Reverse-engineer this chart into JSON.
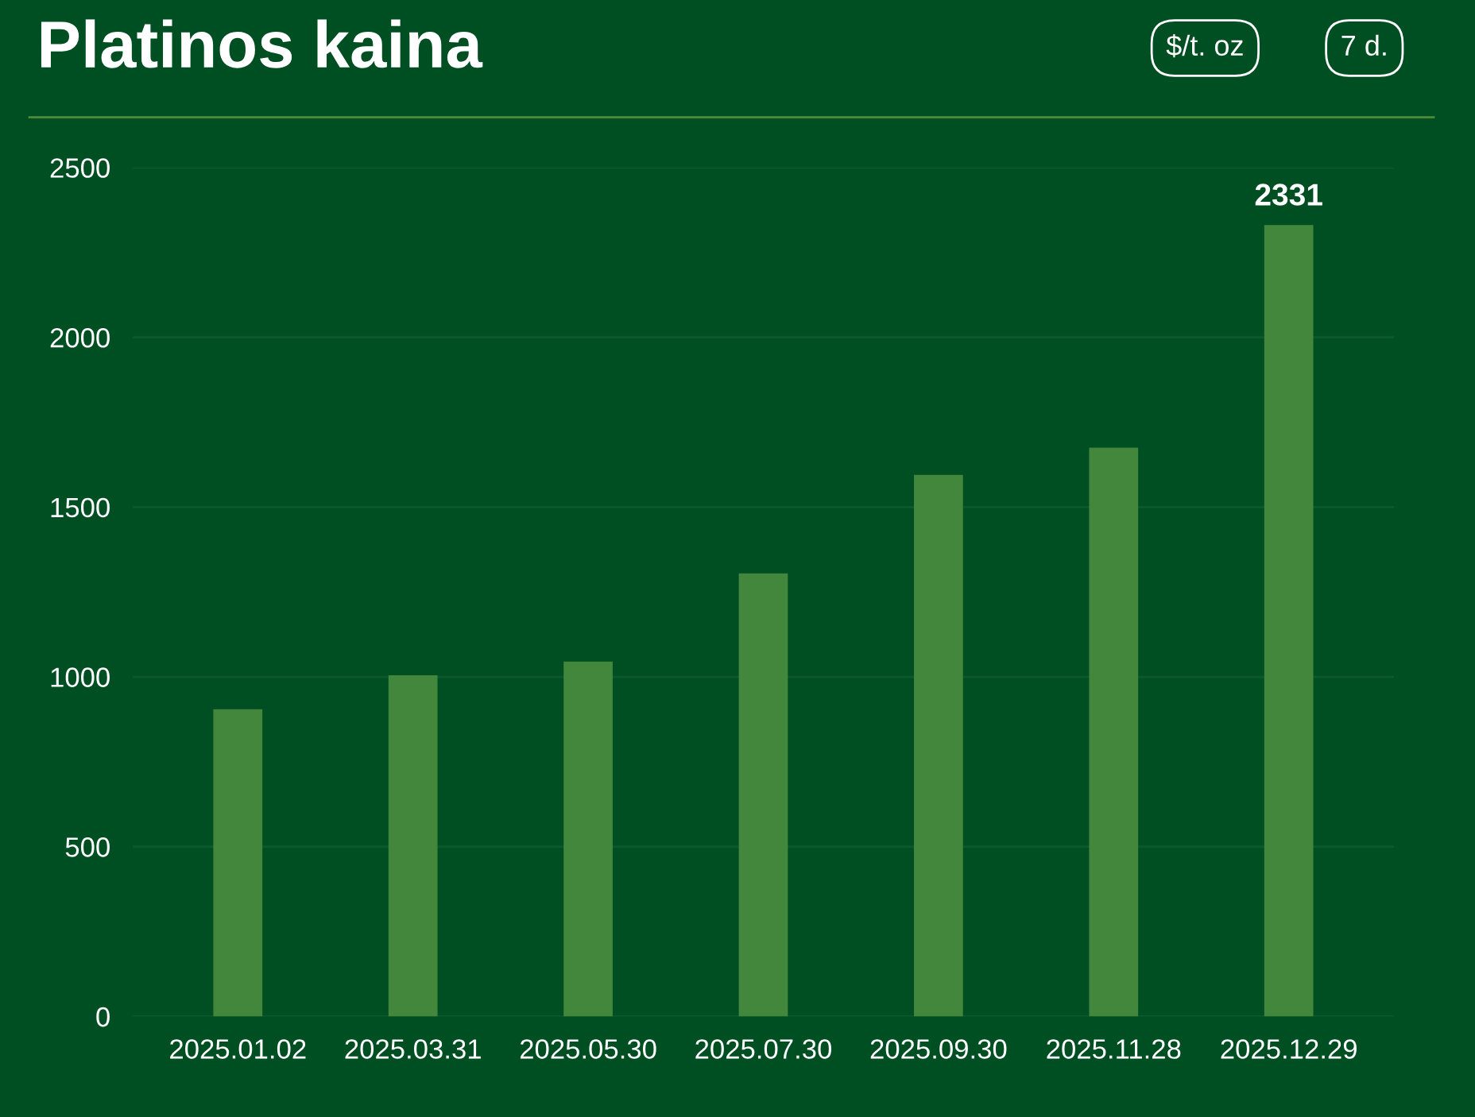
{
  "chart_data": {
    "type": "bar",
    "title": "Platinos kaina",
    "annotations": [
      "$/t. oz",
      "7 d."
    ],
    "categories": [
      "2025.01.02",
      "2025.03.31",
      "2025.05.30",
      "2025.07.30",
      "2025.09.30",
      "2025.11.28",
      "2025.12.29"
    ],
    "values": [
      905,
      1005,
      1045,
      1305,
      1595,
      1675,
      2331
    ],
    "value_labels": [
      null,
      null,
      null,
      null,
      null,
      null,
      "2331"
    ],
    "color": "#43873d",
    "ylim": [
      0,
      2500
    ],
    "yticks": [
      0,
      500,
      1000,
      1500,
      2000,
      2500
    ],
    "grid": "y"
  }
}
